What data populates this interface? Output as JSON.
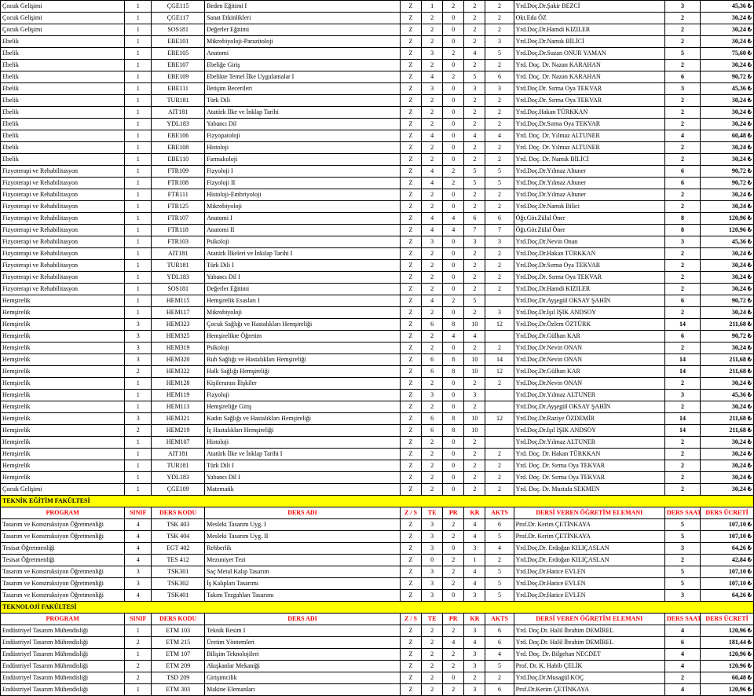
{
  "colors": {
    "section_bg": "#ffff00",
    "header_fg": "#ff0000",
    "border": "#000000"
  },
  "header": {
    "program": "PROGRAM",
    "sinif": "SINIF",
    "ders_kodu": "DERS KODU",
    "ders_adi": "DERS ADI",
    "zs": "Z / S",
    "te": "TE",
    "pr": "PR",
    "kr": "KR",
    "akts": "AKTS",
    "eleman": "DERSİ VEREN ÖĞRETİM ELEMANI",
    "saati": "DERS SAATİ",
    "ucreti": "DERS ÜCRETİ"
  },
  "sections": [
    {
      "title": null,
      "rows": [
        [
          "Çocuk Gelişimi",
          "1",
          "ÇGE115",
          "Beden Eğitimi I",
          "Z",
          "1",
          "2",
          "2",
          "2",
          "Yrd.Doç.Dr.Şakir BEZCİ",
          "3",
          "45,36 ₺"
        ],
        [
          "Çocuk Gelişimi",
          "1",
          "ÇGE117",
          "Sanat Etkinlikleri",
          "Z",
          "2",
          "0",
          "2",
          "2",
          "Okt.Eda ÖZ",
          "2",
          "30,24 ₺"
        ],
        [
          "Çocuk Gelişimi",
          "1",
          "SOS181",
          "Değerler Eğitimi",
          "Z",
          "2",
          "0",
          "2",
          "2",
          "Yrd.Doç.Dr.Hamdi KIZILER",
          "2",
          "30,24 ₺"
        ],
        [
          "Ebelik",
          "1",
          "EBE101",
          "Mikrobiyoloji-Parazitoloji",
          "Z",
          "2",
          "0",
          "2",
          "3",
          "Yrd.Doç.Dr.Namık BİLİCİ",
          "2",
          "30,24 ₺"
        ],
        [
          "Ebelik",
          "1",
          "EBE105",
          "Anatomi",
          "Z",
          "3",
          "2",
          "4",
          "5",
          "Yrd.Doç.Dr.Suzan ONUR YAMAN",
          "5",
          "75,60 ₺"
        ],
        [
          "Ebelik",
          "1",
          "EBE107",
          "Ebeliğe Giriş",
          "Z",
          "2",
          "0",
          "2",
          "2",
          "Yrd. Doç. Dr. Nazan KARAHAN",
          "2",
          "30,24 ₺"
        ],
        [
          "Ebelik",
          "1",
          "EBE109",
          "Ebelikte Temel İlke Uygulamalar I",
          "Z",
          "4",
          "2",
          "5",
          "6",
          "Yrd. Doç. Dr. Nazan KARAHAN",
          "6",
          "90,72 ₺"
        ],
        [
          "Ebelik",
          "1",
          "EBE111",
          "İletişim Becerileri",
          "Z",
          "3",
          "0",
          "3",
          "3",
          "Yrd.Doç.Dr. Sırma Oya TEKVAR",
          "3",
          "45,36 ₺"
        ],
        [
          "Ebelik",
          "1",
          "TUR181",
          "Türk Dili",
          "Z",
          "2",
          "0",
          "2",
          "2",
          "Yrd.Doç.Dr. Sırma Oya TEKVAR",
          "2",
          "30,24 ₺"
        ],
        [
          "Ebelik",
          "1",
          "AIT181",
          "Atatürk İlke ve İnklap Tarihi",
          "Z",
          "2",
          "0",
          "2",
          "2",
          "Yrd.Doç.Hakan TÜRKKAN",
          "2",
          "30,24 ₺"
        ],
        [
          "Ebelik",
          "1",
          "YDL183",
          "Yabancı Dil",
          "Z",
          "2",
          "0",
          "2",
          "2",
          "Yrd.Doç.Dr.Sırma Oya TEKVAR",
          "2",
          "30,24 ₺"
        ],
        [
          "Ebelik",
          "1",
          "EBE106",
          "Fizyopatoloji",
          "Z",
          "4",
          "0",
          "4",
          "4",
          "Yrd. Doç. Dr. Yılmaz ALTUNER",
          "4",
          "60,48 ₺"
        ],
        [
          "Ebelik",
          "1",
          "EBE108",
          "Histoloji",
          "Z",
          "2",
          "0",
          "2",
          "2",
          "Yrd. Doç. Dr. Yılmaz ALTUNER",
          "2",
          "30,24 ₺"
        ],
        [
          "Ebelik",
          "1",
          "EBE110",
          "Farmakoloji",
          "Z",
          "2",
          "0",
          "2",
          "2",
          "Yrd. Doç. Dr. Namık BİLİCİ",
          "2",
          "30,24 ₺"
        ],
        [
          "Fizyoterapi ve Rehabilitasyon",
          "1",
          "FTR109",
          "Fizyoloji I",
          "Z",
          "4",
          "2",
          "5",
          "5",
          "Yrd.Doç.Dr.Yılmaz Altuner",
          "6",
          "90,72 ₺"
        ],
        [
          "Fizyoterapi ve Rehabilitasyon",
          "1",
          "FTR108",
          "Fizyoloji II",
          "Z",
          "4",
          "2",
          "5",
          "5",
          "Yrd.Doç.Dr.Yılmaz Altuner",
          "6",
          "90,72 ₺"
        ],
        [
          "Fizyoterapi ve Rehabilitasyon",
          "1",
          "FTR111",
          "Histoloji-Embriyoloji",
          "Z",
          "2",
          "0",
          "2",
          "2",
          "Yrd.Doç.Dr.Yılmaz Altuner",
          "2",
          "30,24 ₺"
        ],
        [
          "Fizyoterapi ve Rehabilitasyon",
          "1",
          "FTR125",
          "Mikrobiyoloji",
          "Z",
          "2",
          "0",
          "2",
          "2",
          "Yrd.Doç.Dr.Namık Bilici",
          "2",
          "30,24 ₺"
        ],
        [
          "Fizyoterapi ve Rehabilitasyon",
          "1",
          "FTR107",
          "Anatomi I",
          "Z",
          "4",
          "4",
          "6",
          "6",
          "Öğr.Gör.Zülal Öner",
          "8",
          "120,96 ₺"
        ],
        [
          "Fizyoterapi ve Rehabilitasyon",
          "1",
          "FTR118",
          "Anatomi II",
          "Z",
          "4",
          "4",
          "7",
          "7",
          "Öğr.Gör.Zülal Öner",
          "8",
          "120,96 ₺"
        ],
        [
          "Fizyoterapi ve Rehabilitasyon",
          "1",
          "FTR103",
          "Psikoloji",
          "Z",
          "3",
          "0",
          "3",
          "3",
          "Yrd.Doç.Dr.Nevin Onan",
          "3",
          "45,36 ₺"
        ],
        [
          "Fizyoterapi ve Rehabilitasyon",
          "1",
          "AIT181",
          "Atatürk İlkeleri ve İnkılap Tarihi I",
          "Z",
          "2",
          "0",
          "2",
          "2",
          "Yrd.Doç.Dr.Hakan TÜRKKAN",
          "2",
          "30,24 ₺"
        ],
        [
          "Fizyoterapi ve Rehabilitasyon",
          "1",
          "TUR181",
          "Türk Dili I",
          "Z",
          "2",
          "0",
          "2",
          "2",
          "Yrd.Doç.Dr.Sırma Oya TEKVAR",
          "2",
          "30,24 ₺"
        ],
        [
          "Fizyoterapi ve Rehabilitasyon",
          "1",
          "YDL183",
          "Yabancı Dil I",
          "Z",
          "2",
          "0",
          "2",
          "2",
          "Yrd.Doç.Dr. Sırma Oya TEKVAR",
          "2",
          "30,24 ₺"
        ],
        [
          "Fizyoterapi ve Rehabilitasyon",
          "1",
          "SOS181",
          "Değerler Eğitimi",
          "Z",
          "2",
          "0",
          "2",
          "2",
          "Yrd.Doç.Dr.Hamdi KIZILER",
          "2",
          "30,24 ₺"
        ],
        [
          "Hemşirelik",
          "1",
          "HEM115",
          "Hemşirelik Esasları I",
          "Z",
          "4",
          "2",
          "5",
          "",
          "Yrd.Doç.Dr.Ayşegül OKSAY ŞAHİN",
          "6",
          "90,72 ₺"
        ],
        [
          "Hemşirelik",
          "1",
          "HEM117",
          "Mikrobiyoloji",
          "Z",
          "2",
          "0",
          "2",
          "3",
          "Yrd.Doç.Dr.Işıl IŞIK ANDSOY",
          "2",
          "30,24 ₺"
        ],
        [
          "Hemşirelik",
          "3",
          "HEM323",
          "Çocuk Sağlığı ve Hastalıkları Hemşireliği",
          "Z",
          "6",
          "8",
          "10",
          "12",
          "Yrd.Doç.Dr.Özlem ÖZTÜRK",
          "14",
          "211,68 ₺"
        ],
        [
          "Hemşirelik",
          "3",
          "HEM325",
          "Hemşirelikte Öğretim",
          "Z",
          "2",
          "4",
          "4",
          "",
          "Yrd.Doç.Dr.Gülhan KAR",
          "6",
          "90,72 ₺"
        ],
        [
          "Hemşirelik",
          "3",
          "HEM319",
          "Psikoloji",
          "Z",
          "2",
          "0",
          "2",
          "2",
          "Yrd.Doç.Dr.Nevin ONAN",
          "2",
          "30,24 ₺"
        ],
        [
          "Hemşirelik",
          "3",
          "HEM320",
          "Ruh Sağlığı ve Hastalıkları Hemşireliği",
          "Z",
          "6",
          "8",
          "10",
          "14",
          "Yrd.Doç.Dr.Nevin ONAN",
          "14",
          "211,68 ₺"
        ],
        [
          "Hemşirelik",
          "2",
          "HEM322",
          "Halk Sağlığı Hemşireliği",
          "Z",
          "6",
          "8",
          "10",
          "12",
          "Yrd.Doç.Dr.Gülhan KAR",
          "14",
          "211,68 ₺"
        ],
        [
          "Hemşirelik",
          "1",
          "HEM128",
          "Kişilerarası İlişkiler",
          "Z",
          "2",
          "0",
          "2",
          "2",
          "Yrd.Doç.Dr.Nevin ONAN",
          "2",
          "30,24 ₺"
        ],
        [
          "Hemşirelik",
          "1",
          "HEM119",
          "Fizyoloji",
          "Z",
          "3",
          "0",
          "3",
          "",
          "Yrd.Doç.Dr.Yılmaz ALTUNER",
          "3",
          "45,36 ₺"
        ],
        [
          "Hemşirelik",
          "1",
          "HEM113",
          "Hemşireliğe Giriş",
          "Z",
          "2",
          "0",
          "2",
          "",
          "Yrd.Doç.Dr.Ayşegül OKSAY ŞAHİN",
          "2",
          "30,24 ₺"
        ],
        [
          "Hemşirelik",
          "3",
          "HEM321",
          "Kadın Sağlığı ve Hastalıkları Hemşireliği",
          "Z",
          "6",
          "8",
          "10",
          "12",
          "Yrd.Doç.Dr.Raziye ÖZDEMİR",
          "14",
          "211,68 ₺"
        ],
        [
          "Hemşirelik",
          "2",
          "HEM219",
          "İç Hastalıkları Hemşireliği",
          "Z",
          "6",
          "8",
          "10",
          "",
          "Yrd.Doç.Dr.Işıl IŞIK ANDSOY",
          "14",
          "211,68 ₺"
        ],
        [
          "Hemşirelik",
          "1",
          "HEM107",
          "Histoloji",
          "Z",
          "2",
          "0",
          "2",
          "",
          "Yrd.Doç.Dr.Yılmaz ALTUNER",
          "2",
          "30,24 ₺"
        ],
        [
          "Hemşirelik",
          "1",
          "AIT181",
          "Atatürk İlke ve İnklap Tarihi I",
          "Z",
          "2",
          "0",
          "2",
          "2",
          "Yrd. Doç. Dr. Hakan TÜRKKAN",
          "2",
          "30,24 ₺"
        ],
        [
          "Hemşirelik",
          "1",
          "TUR181",
          "Türk Dili I",
          "Z",
          "2",
          "0",
          "2",
          "2",
          "Yrd. Doç. Dr. Sırma Oya TEKVAR",
          "2",
          "30,24 ₺"
        ],
        [
          "Hemşirelik",
          "1",
          "YDL183",
          "Yabancı Dil I",
          "Z",
          "2",
          "0",
          "2",
          "2",
          "Yrd. Doç. Dr. Sırma Oya TEKVAR",
          "2",
          "30,24 ₺"
        ],
        [
          "Çocuk Gelişimi",
          "1",
          "ÇGE109",
          "Matematik",
          "Z",
          "2",
          "0",
          "2",
          "2",
          "Yrd. Doç. Dr. Mustafa SEKMEN",
          "2",
          "30,24 ₺"
        ]
      ]
    },
    {
      "title": "TEKNİK EĞİTİM FAKÜLTESİ",
      "header": true,
      "rows": [
        [
          "Tasarım ve Konstruksiyon Öğretmenliği",
          "4",
          "TSK 403",
          "Mesleki Tasarım Uyg. I",
          "Z",
          "3",
          "2",
          "4",
          "6",
          "Prof.Dr. Kerim ÇETİNKAYA",
          "5",
          "107,10 ₺"
        ],
        [
          "Tasarım ve Konstruksiyon Öğretmenliği",
          "4",
          "TSK 404",
          "Mesleki Tasarım Uyg. II",
          "Z",
          "3",
          "2",
          "4",
          "5",
          "Prof.Dr. Kerim ÇETİNKAYA",
          "5",
          "107,10 ₺"
        ],
        [
          "Tesisat Öğretmenliği",
          "4",
          "EGT 402",
          "Rehberlik",
          "Z",
          "3",
          "0",
          "3",
          "4",
          "Yrd.Doç.Dr. Erdoğan KILIÇASLAN",
          "3",
          "64,26 ₺"
        ],
        [
          "Tesisat Öğretmenliği",
          "4",
          "TES 412",
          "Mezuniyet Tezi",
          "Z",
          "0",
          "2",
          "1",
          "2",
          "Yrd.Doç.Dr. Erdoğan KILIÇASLAN",
          "2",
          "42,84 ₺"
        ],
        [
          "Tasarım ve Konstruksiyon Öğretmenliği",
          "3",
          "TSK301",
          "Saç Metal Kalıp Tasarım",
          "Z",
          "3",
          "2",
          "4",
          "5",
          "Yrd.Doç.Dr.Hatice EVLEN",
          "5",
          "107,10 ₺"
        ],
        [
          "Tasarım ve Konstruksiyon Öğretmenliği",
          "3",
          "TSK302",
          "İş Kalıpları Tasarımı",
          "Z",
          "3",
          "2",
          "4",
          "5",
          "Yrd.Doç.Dr.Hatice EVLEN",
          "5",
          "107,10 ₺"
        ],
        [
          "Tasarım ve Konstruksiyon Öğretmenliği",
          "4",
          "TSK401",
          "Takım Tezgahları Tasarımı",
          "Z",
          "3",
          "0",
          "3",
          "5",
          "Yrd.Doç.Dr.Hatice EVLEN",
          "3",
          "64,26 ₺"
        ]
      ]
    },
    {
      "title": "TEKNOLOJİ FAKÜLTESİ",
      "header": true,
      "rows": [
        [
          "Endüstriyel Tasarım Mühendisliği",
          "1",
          "ETM 103",
          "Teknik Resim I",
          "Z",
          "2",
          "2",
          "3",
          "6",
          "Yrd. Doç.Dr. Halil İbrahim DEMİREL",
          "4",
          "120,96 ₺"
        ],
        [
          "Endüstriyel Tasarım Mühendisliği",
          "2",
          "ETM 215",
          "Üretim Yöntemleri",
          "Z",
          "2",
          "4",
          "4",
          "6",
          "Yrd. Doç.Dr. Halil İbrahim DEMİREL",
          "6",
          "181,44 ₺"
        ],
        [
          "Endüstriyel Tasarım Mühendisliği",
          "1",
          "ETM 107",
          "Bilişim Teknolojileri",
          "Z",
          "2",
          "2",
          "3",
          "4",
          "Yrd. Doç. Dr. Bilgehan NECDET",
          "4",
          "120,96 ₺"
        ],
        [
          "Endüstriyel Tasarım Mühendisliği",
          "2",
          "ETM 209",
          "Akışkanlar Mekaniği",
          "Z",
          "2",
          "2",
          "3",
          "5",
          "Prof. Dr. K. Habib ÇELİK",
          "4",
          "120,96 ₺"
        ],
        [
          "Endüstriyel Tasarım Mühendisliği",
          "2",
          "TSD 209",
          "Girişimcilik",
          "Z",
          "2",
          "0",
          "2",
          "2",
          "Yrd.Doç.Dr.Musagül KOÇ",
          "2",
          "60,48 ₺"
        ],
        [
          "Endüstriyel Tasarım Mühendisliği",
          "1",
          "ETM 303",
          "Makine Elemanları",
          "Z",
          "2",
          "2",
          "3",
          "6",
          "Prof.Dr.Kerim ÇETİNKAYA",
          "4",
          "120,96 ₺"
        ]
      ]
    }
  ]
}
